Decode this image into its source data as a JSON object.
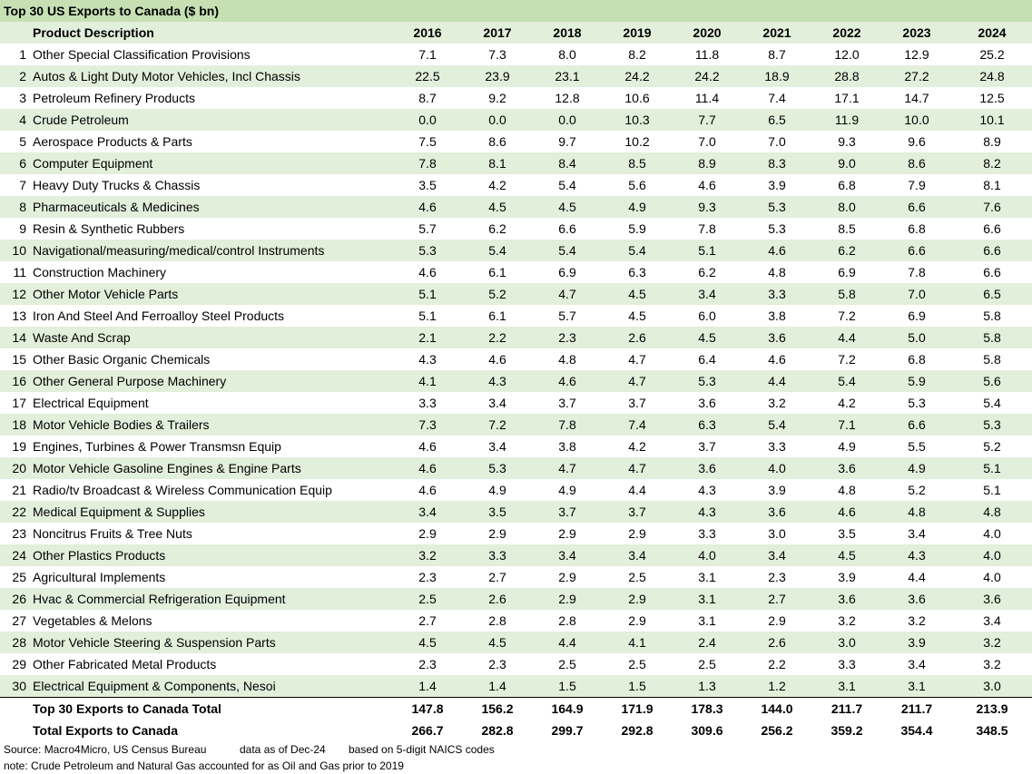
{
  "title": "Top 30 US Exports to Canada ($ bn)",
  "table": {
    "header": [
      "Product Description",
      "2016",
      "2017",
      "2018",
      "2019",
      "2020",
      "2021",
      "2022",
      "2023",
      "2024"
    ],
    "rows": [
      [
        "1",
        "Other Special Classification Provisions",
        "7.1",
        "7.3",
        "8.0",
        "8.2",
        "11.8",
        "8.7",
        "12.0",
        "12.9",
        "25.2"
      ],
      [
        "2",
        "Autos & Light Duty Motor Vehicles, Incl Chassis",
        "22.5",
        "23.9",
        "23.1",
        "24.2",
        "24.2",
        "18.9",
        "28.8",
        "27.2",
        "24.8"
      ],
      [
        "3",
        "Petroleum Refinery Products",
        "8.7",
        "9.2",
        "12.8",
        "10.6",
        "11.4",
        "7.4",
        "17.1",
        "14.7",
        "12.5"
      ],
      [
        "4",
        "Crude Petroleum",
        "0.0",
        "0.0",
        "0.0",
        "10.3",
        "7.7",
        "6.5",
        "11.9",
        "10.0",
        "10.1"
      ],
      [
        "5",
        "Aerospace Products & Parts",
        "7.5",
        "8.6",
        "9.7",
        "10.2",
        "7.0",
        "7.0",
        "9.3",
        "9.6",
        "8.9"
      ],
      [
        "6",
        "Computer Equipment",
        "7.8",
        "8.1",
        "8.4",
        "8.5",
        "8.9",
        "8.3",
        "9.0",
        "8.6",
        "8.2"
      ],
      [
        "7",
        "Heavy Duty Trucks & Chassis",
        "3.5",
        "4.2",
        "5.4",
        "5.6",
        "4.6",
        "3.9",
        "6.8",
        "7.9",
        "8.1"
      ],
      [
        "8",
        "Pharmaceuticals & Medicines",
        "4.6",
        "4.5",
        "4.5",
        "4.9",
        "9.3",
        "5.3",
        "8.0",
        "6.6",
        "7.6"
      ],
      [
        "9",
        "Resin & Synthetic Rubbers",
        "5.7",
        "6.2",
        "6.6",
        "5.9",
        "7.8",
        "5.3",
        "8.5",
        "6.8",
        "6.6"
      ],
      [
        "10",
        "Navigational/measuring/medical/control Instruments",
        "5.3",
        "5.4",
        "5.4",
        "5.4",
        "5.1",
        "4.6",
        "6.2",
        "6.6",
        "6.6"
      ],
      [
        "11",
        "Construction Machinery",
        "4.6",
        "6.1",
        "6.9",
        "6.3",
        "6.2",
        "4.8",
        "6.9",
        "7.8",
        "6.6"
      ],
      [
        "12",
        "Other Motor Vehicle Parts",
        "5.1",
        "5.2",
        "4.7",
        "4.5",
        "3.4",
        "3.3",
        "5.8",
        "7.0",
        "6.5"
      ],
      [
        "13",
        "Iron And Steel And Ferroalloy Steel Products",
        "5.1",
        "6.1",
        "5.7",
        "4.5",
        "6.0",
        "3.8",
        "7.2",
        "6.9",
        "5.8"
      ],
      [
        "14",
        "Waste And Scrap",
        "2.1",
        "2.2",
        "2.3",
        "2.6",
        "4.5",
        "3.6",
        "4.4",
        "5.0",
        "5.8"
      ],
      [
        "15",
        "Other Basic Organic Chemicals",
        "4.3",
        "4.6",
        "4.8",
        "4.7",
        "6.4",
        "4.6",
        "7.2",
        "6.8",
        "5.8"
      ],
      [
        "16",
        "Other General Purpose Machinery",
        "4.1",
        "4.3",
        "4.6",
        "4.7",
        "5.3",
        "4.4",
        "5.4",
        "5.9",
        "5.6"
      ],
      [
        "17",
        "Electrical Equipment",
        "3.3",
        "3.4",
        "3.7",
        "3.7",
        "3.6",
        "3.2",
        "4.2",
        "5.3",
        "5.4"
      ],
      [
        "18",
        "Motor Vehicle Bodies & Trailers",
        "7.3",
        "7.2",
        "7.8",
        "7.4",
        "6.3",
        "5.4",
        "7.1",
        "6.6",
        "5.3"
      ],
      [
        "19",
        "Engines, Turbines & Power Transmsn Equip",
        "4.6",
        "3.4",
        "3.8",
        "4.2",
        "3.7",
        "3.3",
        "4.9",
        "5.5",
        "5.2"
      ],
      [
        "20",
        "Motor Vehicle Gasoline Engines & Engine Parts",
        "4.6",
        "5.3",
        "4.7",
        "4.7",
        "3.6",
        "4.0",
        "3.6",
        "4.9",
        "5.1"
      ],
      [
        "21",
        "Radio/tv Broadcast & Wireless Communication Equip",
        "4.6",
        "4.9",
        "4.9",
        "4.4",
        "4.3",
        "3.9",
        "4.8",
        "5.2",
        "5.1"
      ],
      [
        "22",
        "Medical Equipment & Supplies",
        "3.4",
        "3.5",
        "3.7",
        "3.7",
        "4.3",
        "3.6",
        "4.6",
        "4.8",
        "4.8"
      ],
      [
        "23",
        "Noncitrus Fruits & Tree Nuts",
        "2.9",
        "2.9",
        "2.9",
        "2.9",
        "3.3",
        "3.0",
        "3.5",
        "3.4",
        "4.0"
      ],
      [
        "24",
        "Other Plastics Products",
        "3.2",
        "3.3",
        "3.4",
        "3.4",
        "4.0",
        "3.4",
        "4.5",
        "4.3",
        "4.0"
      ],
      [
        "25",
        "Agricultural Implements",
        "2.3",
        "2.7",
        "2.9",
        "2.5",
        "3.1",
        "2.3",
        "3.9",
        "4.4",
        "4.0"
      ],
      [
        "26",
        "Hvac & Commercial Refrigeration Equipment",
        "2.5",
        "2.6",
        "2.9",
        "2.9",
        "3.1",
        "2.7",
        "3.6",
        "3.6",
        "3.6"
      ],
      [
        "27",
        "Vegetables & Melons",
        "2.7",
        "2.8",
        "2.8",
        "2.9",
        "3.1",
        "2.9",
        "3.2",
        "3.2",
        "3.4"
      ],
      [
        "28",
        "Motor Vehicle Steering & Suspension Parts",
        "4.5",
        "4.5",
        "4.4",
        "4.1",
        "2.4",
        "2.6",
        "3.0",
        "3.9",
        "3.2"
      ],
      [
        "29",
        "Other Fabricated Metal Products",
        "2.3",
        "2.3",
        "2.5",
        "2.5",
        "2.5",
        "2.2",
        "3.3",
        "3.4",
        "3.2"
      ],
      [
        "30",
        "Electrical Equipment & Components, Nesoi",
        "1.4",
        "1.4",
        "1.5",
        "1.5",
        "1.3",
        "1.2",
        "3.1",
        "3.1",
        "3.0"
      ]
    ],
    "totals": [
      [
        "Top 30 Exports to Canada Total",
        "147.8",
        "156.2",
        "164.9",
        "171.9",
        "178.3",
        "144.0",
        "211.7",
        "211.7",
        "213.9"
      ],
      [
        "Total Exports to Canada",
        "266.7",
        "282.8",
        "299.7",
        "292.8",
        "309.6",
        "256.2",
        "359.2",
        "354.4",
        "348.5"
      ]
    ]
  },
  "footer": {
    "source": [
      "Source: Macro4Micro, US Census Bureau",
      "data as of Dec-24",
      "based on 5-digit NAICS codes"
    ],
    "note": "note: Crude Petroleum and Natural Gas accounted for as Oil and Gas prior to 2019"
  }
}
